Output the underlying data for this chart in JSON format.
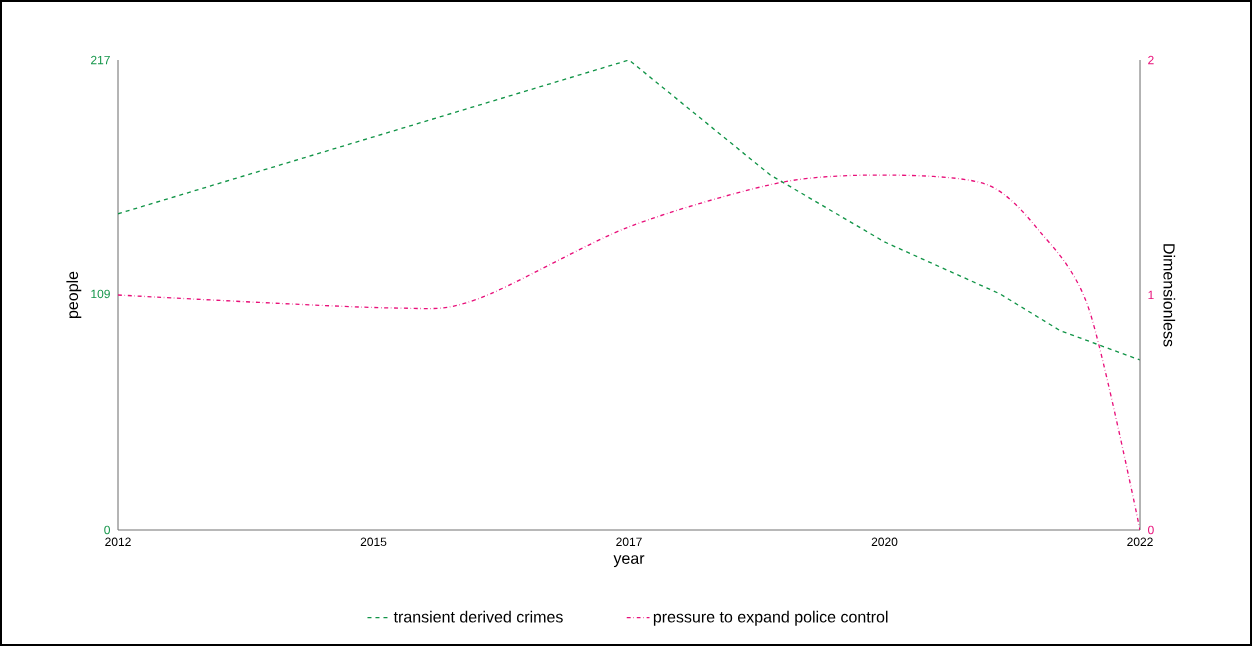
{
  "chart_data": {
    "type": "line",
    "xlabel": "year",
    "ylabel": "people",
    "y2label": "Dimensionless",
    "xlim": [
      2012,
      2022
    ],
    "xticks": [
      2012,
      {
        "value": 2014.5,
        "label": "2015"
      },
      2017,
      {
        "value": 2019.5,
        "label": "2020"
      },
      2022
    ],
    "ylim": [
      0,
      217
    ],
    "yticks": [
      0,
      109,
      217
    ],
    "y2lim": [
      0,
      2
    ],
    "y2ticks": [
      0,
      1,
      2
    ],
    "grid": false,
    "legend": "bottom",
    "marker": "none",
    "series": [
      {
        "name": "transient derived crimes",
        "color": "#119447",
        "line_style": "dashed",
        "x": [
          2012,
          2017,
          2018.38,
          2019.5,
          2020.63,
          2021.22,
          2022
        ],
        "values": [
          146,
          217,
          164,
          133,
          109,
          92,
          78.5
        ]
      },
      {
        "name": "pressure to expand police control",
        "color": "#e8107a",
        "line_style": "dashdot",
        "axis": "y2",
        "x": [
          2012,
          2014.66,
          2015.5,
          2017,
          2018.5,
          2019.6,
          2020.5,
          2021,
          2021.5,
          2022
        ],
        "values": [
          1.0,
          0.945,
          0.98,
          1.29,
          1.48,
          1.51,
          1.47,
          1.28,
          0.94,
          0.0
        ]
      }
    ]
  }
}
